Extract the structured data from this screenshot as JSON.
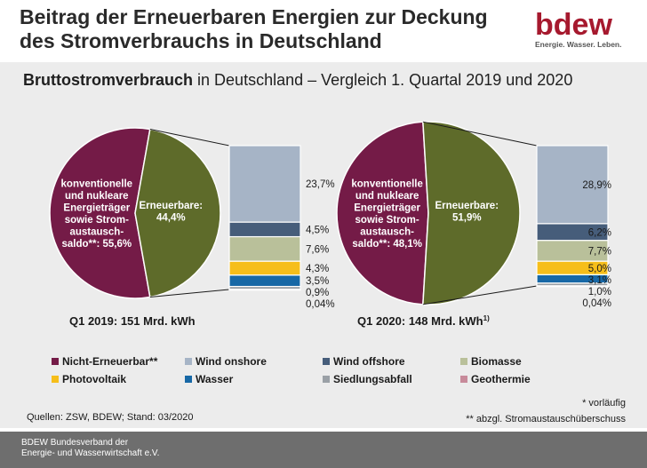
{
  "header": {
    "title_line1": "Beitrag der Erneuerbaren Energien zur Deckung",
    "title_line2": "des Stromverbrauchs in Deutschland"
  },
  "logo": {
    "wordmark": "bdew",
    "tagline": "Energie. Wasser. Leben.",
    "color": "#a6192e"
  },
  "subtitle": {
    "bold": "Bruttostromverbrauch",
    "rest": " in Deutschland – Vergleich 1. Quartal 2019 und 2020"
  },
  "chart_data": [
    {
      "type": "pie",
      "caption": "Q1 2019: 151 Mrd. kWh",
      "caption_sup": "",
      "slices": [
        {
          "name": "konventionelle und nukleare Energieträger sowie Stromaustauschsaldo**",
          "label_lines": [
            "konventionelle",
            "und nukleare",
            "Energieträger",
            "sowie Strom-",
            "austausch-",
            "saldo**: 55,6%"
          ],
          "value": 55.6,
          "color": "#741b47"
        },
        {
          "name": "Erneuerbare",
          "label_lines": [
            "Erneuerbare:",
            "44,4%"
          ],
          "value": 44.4,
          "color": "#5e6b2a"
        }
      ],
      "breakdown": {
        "type": "stacked-bar",
        "segments": [
          {
            "name": "Wind onshore",
            "value": 23.7,
            "label": "23,7%",
            "color": "#a6b4c6"
          },
          {
            "name": "Wind offshore",
            "value": 4.5,
            "label": "4,5%",
            "color": "#465d7a"
          },
          {
            "name": "Biomasse",
            "value": 7.6,
            "label": "7,6%",
            "color": "#b9c09a"
          },
          {
            "name": "Photovoltaik",
            "value": 4.3,
            "label": "4,3%",
            "color": "#f6be1a"
          },
          {
            "name": "Wasser",
            "value": 3.5,
            "label": "3,5%",
            "color": "#1768a6"
          },
          {
            "name": "Siedlungsabfall",
            "value": 0.9,
            "label": "0,9%",
            "color": "#9aa0a6"
          },
          {
            "name": "Geothermie",
            "value": 0.04,
            "label": "0,04%",
            "color": "#c78a9a"
          }
        ]
      }
    },
    {
      "type": "pie",
      "caption": "Q1 2020: 148 Mrd. kWh",
      "caption_sup": "1)",
      "slices": [
        {
          "name": "konventionelle und nukleare Energieträger sowie Stromaustauschsaldo**",
          "label_lines": [
            "konventionelle",
            "und nukleare",
            "Energieträger",
            "sowie Strom-",
            "austausch-",
            "saldo**: 48,1%"
          ],
          "value": 48.1,
          "color": "#741b47"
        },
        {
          "name": "Erneuerbare",
          "label_lines": [
            "Erneuerbare:",
            "51,9%"
          ],
          "value": 51.9,
          "color": "#5e6b2a"
        }
      ],
      "breakdown": {
        "type": "stacked-bar",
        "segments": [
          {
            "name": "Wind onshore",
            "value": 28.9,
            "label": "28,9%",
            "color": "#a6b4c6"
          },
          {
            "name": "Wind offshore",
            "value": 6.2,
            "label": "6,2%",
            "color": "#465d7a"
          },
          {
            "name": "Biomasse",
            "value": 7.7,
            "label": "7,7%",
            "color": "#b9c09a"
          },
          {
            "name": "Photovoltaik",
            "value": 5.0,
            "label": "5,0%",
            "color": "#f6be1a"
          },
          {
            "name": "Wasser",
            "value": 3.1,
            "label": "3,1%",
            "color": "#1768a6"
          },
          {
            "name": "Siedlungsabfall",
            "value": 1.0,
            "label": "1,0%",
            "color": "#9aa0a6"
          },
          {
            "name": "Geothermie",
            "value": 0.04,
            "label": "0,04%",
            "color": "#c78a9a"
          }
        ]
      }
    }
  ],
  "legend": [
    {
      "label": "Nicht-Erneuerbar**",
      "color": "#741b47"
    },
    {
      "label": "Wind onshore",
      "color": "#a6b4c6"
    },
    {
      "label": "Wind offshore",
      "color": "#465d7a"
    },
    {
      "label": "Biomasse",
      "color": "#b9c09a"
    },
    {
      "label": "Photovoltaik",
      "color": "#f6be1a"
    },
    {
      "label": "Wasser",
      "color": "#1768a6"
    },
    {
      "label": "Siedlungsabfall",
      "color": "#9aa0a6"
    },
    {
      "label": "Geothermie",
      "color": "#c78a9a"
    }
  ],
  "notes": {
    "preliminary": "* vorläufig",
    "excluding": "** abzgl. Stromaustauschüberschuss",
    "sources": "Quellen: ZSW, BDEW; Stand: 03/2020"
  },
  "footer": {
    "line1": "BDEW Bundesverband der",
    "line2": "Energie- und Wasserwirtschaft e.V."
  }
}
